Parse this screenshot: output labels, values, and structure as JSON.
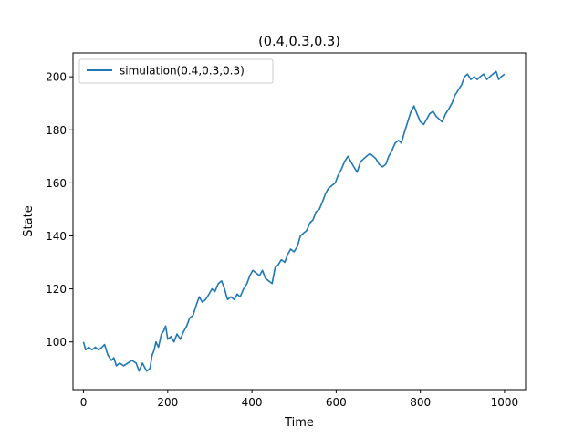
{
  "chart_data": {
    "type": "line",
    "title": "(0.4,0.3,0.3)",
    "xlabel": "Time",
    "ylabel": "State",
    "xlim": [
      -25,
      1050
    ],
    "ylim": [
      82,
      209
    ],
    "xticks": [
      0,
      200,
      400,
      600,
      800,
      1000
    ],
    "yticks": [
      100,
      120,
      140,
      160,
      180,
      200
    ],
    "grid": false,
    "legend_position": "upper left",
    "series": [
      {
        "name": "simulation(0.4,0.3,0.3)",
        "color": "#1f77b4",
        "x": [
          0,
          5,
          12,
          20,
          28,
          36,
          44,
          50,
          58,
          66,
          72,
          78,
          86,
          95,
          105,
          115,
          125,
          132,
          140,
          150,
          158,
          163,
          168,
          172,
          178,
          185,
          190,
          195,
          200,
          208,
          215,
          222,
          230,
          238,
          245,
          252,
          260,
          268,
          275,
          282,
          290,
          298,
          305,
          312,
          320,
          328,
          335,
          342,
          350,
          358,
          365,
          372,
          380,
          388,
          395,
          402,
          410,
          418,
          425,
          432,
          440,
          448,
          455,
          462,
          470,
          478,
          485,
          492,
          500,
          508,
          515,
          522,
          530,
          538,
          545,
          552,
          560,
          568,
          575,
          582,
          590,
          598,
          605,
          612,
          620,
          628,
          635,
          642,
          650,
          658,
          665,
          672,
          680,
          688,
          695,
          702,
          710,
          718,
          725,
          732,
          740,
          748,
          755,
          762,
          770,
          778,
          785,
          792,
          800,
          808,
          815,
          822,
          830,
          838,
          845,
          852,
          860,
          868,
          875,
          882,
          890,
          898,
          905,
          912,
          920,
          928,
          935,
          942,
          950,
          958,
          965,
          972,
          980,
          986,
          992,
          1000
        ],
        "y": [
          100,
          97,
          98,
          97,
          98,
          97,
          98,
          99,
          95,
          93,
          94,
          91,
          92,
          91,
          92,
          93,
          92,
          89,
          92,
          89,
          90,
          95,
          97,
          100,
          98,
          103,
          104,
          106,
          101,
          102,
          100,
          103,
          101,
          104,
          106,
          109,
          110,
          114,
          117,
          115,
          116,
          118,
          120,
          119,
          122,
          123,
          120,
          116,
          117,
          116,
          118,
          117,
          120,
          122,
          125,
          127,
          126,
          125,
          127,
          124,
          123,
          122,
          128,
          129,
          131,
          130,
          133,
          135,
          134,
          136,
          140,
          141,
          142,
          145,
          146,
          149,
          150,
          153,
          156,
          158,
          159,
          160,
          163,
          165,
          168,
          170,
          168,
          166,
          164,
          168,
          169,
          170,
          171,
          170,
          169,
          167,
          166,
          167,
          170,
          172,
          175,
          176,
          175,
          179,
          183,
          187,
          189,
          186,
          183,
          182,
          184,
          186,
          187,
          185,
          184,
          183,
          186,
          188,
          190,
          193,
          195,
          197,
          200,
          201,
          199,
          200,
          199,
          200,
          201,
          199,
          200,
          201,
          202,
          199,
          200,
          201
        ]
      }
    ]
  }
}
